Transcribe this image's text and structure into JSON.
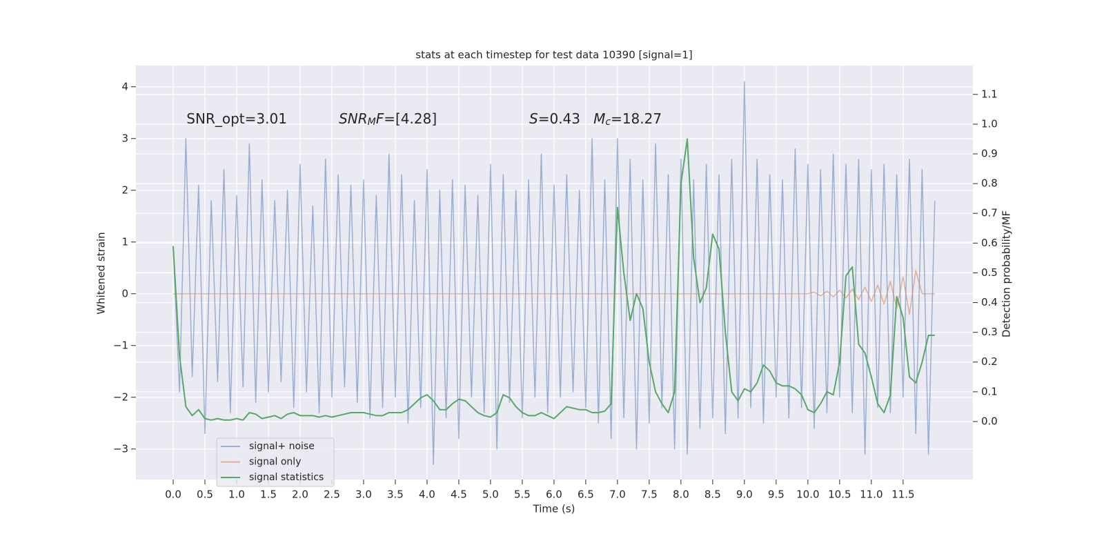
{
  "chart_data": {
    "type": "line",
    "title": "stats at each timestep for test data 10390 [signal=1]",
    "xlabel": "Time (s)",
    "ylabel": "Whitened strain",
    "y2label": "Detection probability/MF",
    "background": "#eaeaf2",
    "grid": true,
    "legend_loc": "lower left",
    "xlim": [
      -0.587,
      12.6
    ],
    "ylim": [
      -3.59,
      4.41
    ],
    "y2lim": [
      -0.195,
      1.197
    ],
    "xticks": [
      {
        "value": 0,
        "label": "0.0"
      },
      {
        "value": 0.5,
        "label": "0.5"
      },
      {
        "value": 1,
        "label": "1.0"
      },
      {
        "value": 1.5,
        "label": "1.5"
      },
      {
        "value": 2,
        "label": "2.0"
      },
      {
        "value": 2.5,
        "label": "2.5"
      },
      {
        "value": 3,
        "label": "3.0"
      },
      {
        "value": 3.5,
        "label": "3.5"
      },
      {
        "value": 4,
        "label": "4.0"
      },
      {
        "value": 4.5,
        "label": "4.5"
      },
      {
        "value": 5,
        "label": "5.0"
      },
      {
        "value": 5.5,
        "label": "5.5"
      },
      {
        "value": 6,
        "label": "6.0"
      },
      {
        "value": 6.5,
        "label": "6.5"
      },
      {
        "value": 7,
        "label": "7.0"
      },
      {
        "value": 7.5,
        "label": "7.5"
      },
      {
        "value": 8,
        "label": "8.0"
      },
      {
        "value": 8.5,
        "label": "8.5"
      },
      {
        "value": 9,
        "label": "9.0"
      },
      {
        "value": 9.5,
        "label": "9.5"
      },
      {
        "value": 10,
        "label": "10.0"
      },
      {
        "value": 10.5,
        "label": "10.5"
      },
      {
        "value": 11,
        "label": "11.0"
      },
      {
        "value": 11.5,
        "label": "11.5"
      }
    ],
    "yticks": [
      {
        "value": -3,
        "label": "−3"
      },
      {
        "value": -2,
        "label": "−2"
      },
      {
        "value": -1,
        "label": "−1"
      },
      0,
      1,
      2,
      3,
      4
    ],
    "y2ticks": [
      {
        "value": 0,
        "label": "0.0"
      },
      {
        "value": 0.1,
        "label": "0.1"
      },
      {
        "value": 0.2,
        "label": "0.2"
      },
      {
        "value": 0.3,
        "label": "0.3"
      },
      {
        "value": 0.4,
        "label": "0.4"
      },
      {
        "value": 0.5,
        "label": "0.5"
      },
      {
        "value": 0.6,
        "label": "0.6"
      },
      {
        "value": 0.7,
        "label": "0.7"
      },
      {
        "value": 0.8,
        "label": "0.8"
      },
      {
        "value": 0.9,
        "label": "0.9"
      },
      {
        "value": 1.0,
        "label": "1.0"
      },
      {
        "value": 1.1,
        "label": "1.1"
      }
    ],
    "x": [
      0,
      0.1,
      0.2,
      0.3,
      0.4,
      0.5,
      0.6,
      0.7,
      0.8,
      0.9,
      1,
      1.1,
      1.2,
      1.3,
      1.4,
      1.5,
      1.6,
      1.7,
      1.8,
      1.9,
      2,
      2.1,
      2.2,
      2.3,
      2.4,
      2.5,
      2.6,
      2.7,
      2.8,
      2.9,
      3,
      3.1,
      3.2,
      3.3,
      3.4,
      3.5,
      3.6,
      3.7,
      3.8,
      3.9,
      4,
      4.1,
      4.2,
      4.3,
      4.4,
      4.5,
      4.6,
      4.7,
      4.8,
      4.9,
      5,
      5.1,
      5.2,
      5.3,
      5.4,
      5.5,
      5.6,
      5.7,
      5.8,
      5.9,
      6,
      6.1,
      6.2,
      6.3,
      6.4,
      6.5,
      6.6,
      6.7,
      6.8,
      6.9,
      7,
      7.1,
      7.2,
      7.3,
      7.4,
      7.5,
      7.6,
      7.7,
      7.8,
      7.9,
      8,
      8.1,
      8.2,
      8.3,
      8.4,
      8.5,
      8.6,
      8.7,
      8.8,
      8.9,
      9,
      9.1,
      9.2,
      9.3,
      9.4,
      9.5,
      9.6,
      9.7,
      9.8,
      9.9,
      10,
      10.1,
      10.2,
      10.3,
      10.4,
      10.5,
      10.6,
      10.7,
      10.8,
      10.9,
      11,
      11.1,
      11.2,
      11.3,
      11.4,
      11.5,
      11.6,
      11.7,
      11.8,
      11.9,
      12
    ],
    "series": [
      {
        "name": "signal+ noise",
        "color": "#4c72b0",
        "alpha": 0.5,
        "axis": "y",
        "values": [
          0.9,
          -1.9,
          3.0,
          -1.6,
          2.1,
          -2.7,
          1.8,
          -1.7,
          2.4,
          -2.3,
          1.9,
          -1.8,
          2.9,
          -2.1,
          2.2,
          -1.9,
          1.8,
          -1.7,
          2.0,
          -2.2,
          2.5,
          -1.9,
          1.7,
          -2.3,
          2.6,
          -2.0,
          2.3,
          -1.8,
          2.1,
          -2.1,
          2.2,
          -2.4,
          1.9,
          -2.2,
          2.7,
          -2.0,
          2.3,
          -2.5,
          1.8,
          -2.2,
          2.4,
          -3.3,
          2.0,
          -2.4,
          2.2,
          -2.8,
          2.1,
          -2.0,
          1.9,
          -2.3,
          2.5,
          -3.0,
          2.3,
          -2.1,
          2.0,
          -2.4,
          2.2,
          -2.0,
          2.7,
          -2.3,
          2.1,
          -2.0,
          2.3,
          -1.9,
          2.0,
          -2.2,
          3.0,
          -2.5,
          2.2,
          -2.8,
          3.0,
          -2.4,
          2.6,
          -3.0,
          2.2,
          -2.5,
          2.9,
          -2.2,
          2.3,
          -3.0,
          2.6,
          -3.1,
          2.2,
          -2.6,
          2.5,
          -2.4,
          2.3,
          -2.7,
          2.6,
          -2.4,
          4.1,
          -2.2,
          2.6,
          -2.5,
          2.3,
          -2.0,
          2.2,
          -2.4,
          2.8,
          -2.2,
          2.5,
          -2.6,
          2.4,
          -2.3,
          2.7,
          -2.0,
          2.5,
          -2.3,
          2.6,
          -3.1,
          2.4,
          -2.2,
          2.5,
          -2.3,
          2.3,
          -2.0,
          2.6,
          -2.7,
          2.4,
          -3.1,
          1.8
        ]
      },
      {
        "name": "signal only",
        "color": "#dd8452",
        "alpha": 0.6,
        "axis": "y",
        "values": [
          0,
          0,
          0,
          0,
          0,
          0,
          0,
          0,
          0,
          0,
          0,
          0,
          0,
          0,
          0,
          0,
          0,
          0,
          0,
          0,
          0,
          0,
          0,
          0,
          0,
          0,
          0,
          0,
          0,
          0,
          0,
          0,
          0,
          0,
          0,
          0,
          0,
          0,
          0,
          0,
          0,
          0,
          0,
          0,
          0,
          0,
          0,
          0,
          0,
          0,
          0,
          0,
          0,
          0,
          0,
          0,
          0,
          0,
          0,
          0,
          0,
          0,
          0,
          0,
          0,
          0,
          0,
          0,
          0,
          0,
          0,
          0,
          0,
          0,
          0,
          0,
          0,
          0,
          0,
          0,
          0,
          0,
          0,
          0,
          0,
          0,
          0,
          0,
          0,
          0,
          0,
          0,
          0,
          0,
          0,
          0,
          0,
          0,
          0,
          0,
          0,
          0.03,
          -0.04,
          0.05,
          -0.06,
          0.07,
          -0.08,
          0.09,
          -0.11,
          0.13,
          -0.15,
          0.17,
          -0.2,
          0.24,
          -0.28,
          0.33,
          -0.4,
          0.45,
          0,
          0,
          0
        ]
      },
      {
        "name": "signal statistics",
        "color": "#55a868",
        "alpha": 1,
        "axis": "y2",
        "values": [
          0.59,
          0.22,
          0.05,
          0.02,
          0.04,
          0.01,
          0.005,
          0.01,
          0.005,
          0.005,
          0.01,
          0.005,
          0.03,
          0.025,
          0.01,
          0.015,
          0.02,
          0.01,
          0.025,
          0.03,
          0.02,
          0.02,
          0.02,
          0.015,
          0.02,
          0.015,
          0.02,
          0.025,
          0.03,
          0.03,
          0.03,
          0.025,
          0.02,
          0.02,
          0.03,
          0.03,
          0.03,
          0.04,
          0.06,
          0.08,
          0.09,
          0.07,
          0.04,
          0.04,
          0.06,
          0.075,
          0.07,
          0.05,
          0.03,
          0.02,
          0.015,
          0.03,
          0.09,
          0.08,
          0.05,
          0.03,
          0.02,
          0.02,
          0.03,
          0.02,
          0.01,
          0.03,
          0.05,
          0.045,
          0.04,
          0.04,
          0.03,
          0.03,
          0.035,
          0.06,
          0.72,
          0.5,
          0.34,
          0.43,
          0.38,
          0.2,
          0.1,
          0.06,
          0.03,
          0.1,
          0.8,
          0.95,
          0.55,
          0.4,
          0.45,
          0.63,
          0.58,
          0.3,
          0.1,
          0.07,
          0.11,
          0.1,
          0.13,
          0.19,
          0.17,
          0.13,
          0.12,
          0.12,
          0.11,
          0.09,
          0.04,
          0.03,
          0.06,
          0.1,
          0.09,
          0.2,
          0.49,
          0.52,
          0.26,
          0.23,
          0.15,
          0.06,
          0.03,
          0.09,
          0.42,
          0.35,
          0.15,
          0.13,
          0.2,
          0.29,
          0.29
        ]
      }
    ],
    "annotations": [
      {
        "x": 0.21,
        "y": 3.37,
        "parts": [
          {
            "text": "SNR_opt=3.01"
          }
        ]
      },
      {
        "x": 2.61,
        "y": 3.37,
        "parts": [
          {
            "text": "SNR",
            "italic": true
          },
          {
            "text": "M",
            "italic": true,
            "sub": true
          },
          {
            "text": "F",
            "italic": true
          },
          {
            "text": "=[4.28]"
          }
        ]
      },
      {
        "x": 5.61,
        "y": 3.37,
        "parts": [
          {
            "text": "S",
            "italic": true
          },
          {
            "text": "=0.43   "
          },
          {
            "text": "M",
            "italic": true
          },
          {
            "text": "c",
            "italic": true,
            "sub": true
          },
          {
            "text": "=18.27"
          }
        ]
      }
    ]
  }
}
